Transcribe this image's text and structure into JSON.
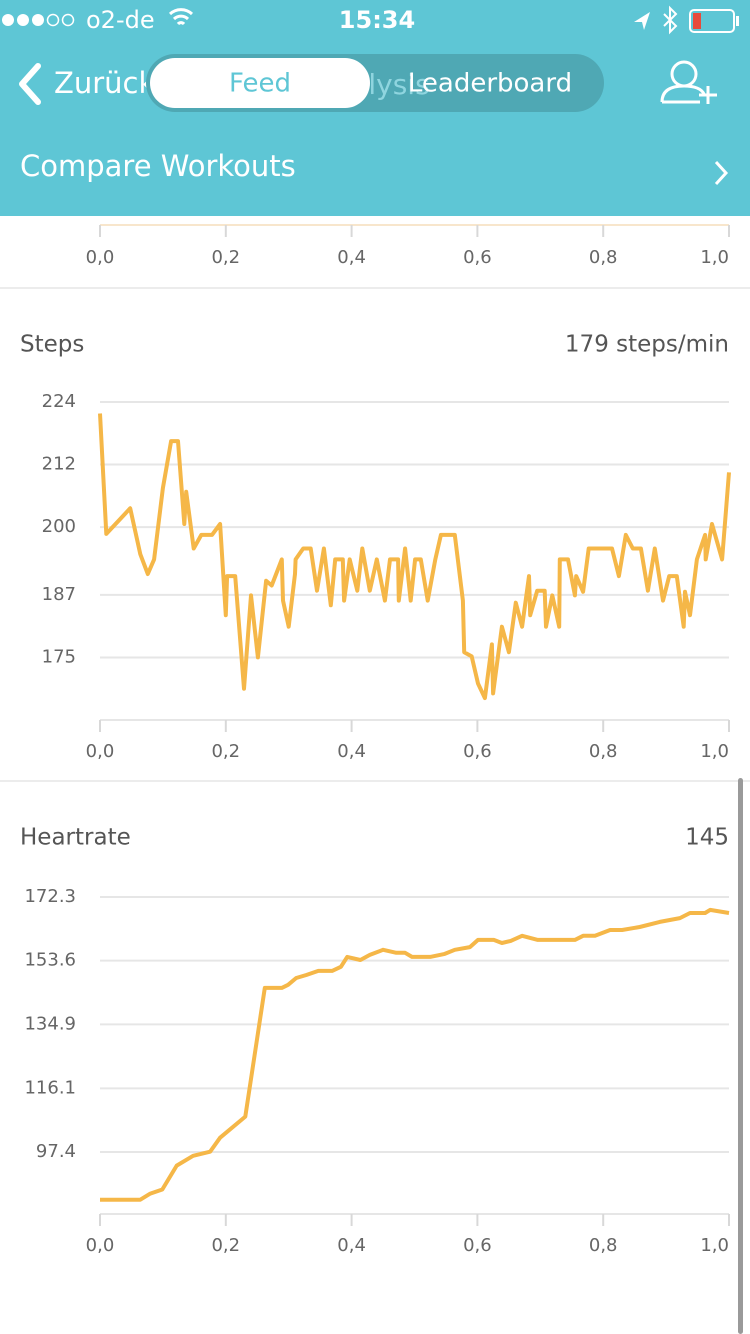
{
  "status_bar": {
    "carrier": "o2-de",
    "time": "15:34"
  },
  "nav": {
    "back": "Zurück",
    "segments": [
      "Feed",
      "Analysis",
      "Leaderboard"
    ]
  },
  "header": {
    "title": "Compare Workouts"
  },
  "chart_data": [
    {
      "type": "line",
      "color": "#f5b748",
      "xlim": [
        0,
        1
      ],
      "xticks": [
        {
          "value": 0,
          "label": "0,0"
        },
        {
          "value": 0.2,
          "label": "0,2"
        },
        {
          "value": 0.4,
          "label": "0,4"
        },
        {
          "value": 0.6,
          "label": "0,6"
        },
        {
          "value": 0.8,
          "label": "0,8"
        },
        {
          "value": 1,
          "label": "1,0"
        }
      ]
    },
    {
      "type": "line",
      "title": "Steps",
      "summary": "179 steps/min",
      "color": "#f5b748",
      "grid": true,
      "xlim": [
        0,
        1
      ],
      "xticks": [
        {
          "value": 0,
          "label": "0,0"
        },
        {
          "value": 0.2,
          "label": "0,2"
        },
        {
          "value": 0.4,
          "label": "0,4"
        },
        {
          "value": 0.6,
          "label": "0,6"
        },
        {
          "value": 0.8,
          "label": "0,8"
        },
        {
          "value": 1,
          "label": "1,0"
        }
      ],
      "ylim": [
        163,
        224
      ],
      "yticks": [
        224,
        212,
        200,
        187,
        175
      ],
      "x": [
        0,
        0.01,
        0.048,
        0.064,
        0.076,
        0.086,
        0.1,
        0.113,
        0.124,
        0.134,
        0.137,
        0.149,
        0.161,
        0.178,
        0.191,
        0.2,
        0.202,
        0.215,
        0.229,
        0.24,
        0.251,
        0.264,
        0.273,
        0.289,
        0.291,
        0.3,
        0.31,
        0.311,
        0.323,
        0.335,
        0.345,
        0.356,
        0.367,
        0.374,
        0.386,
        0.388,
        0.397,
        0.409,
        0.417,
        0.429,
        0.44,
        0.453,
        0.461,
        0.474,
        0.475,
        0.485,
        0.494,
        0.501,
        0.51,
        0.521,
        0.533,
        0.542,
        0.564,
        0.577,
        0.579,
        0.591,
        0.601,
        0.612,
        0.623,
        0.625,
        0.639,
        0.65,
        0.661,
        0.671,
        0.682,
        0.684,
        0.695,
        0.707,
        0.709,
        0.719,
        0.73,
        0.731,
        0.744,
        0.755,
        0.757,
        0.768,
        0.777,
        0.814,
        0.825,
        0.836,
        0.847,
        0.86,
        0.871,
        0.882,
        0.895,
        0.905,
        0.917,
        0.928,
        0.93,
        0.938,
        0.949,
        0.962,
        0.963,
        0.973,
        0.989,
        1
      ],
      "values": [
        221.8,
        198.7,
        203.6,
        194.8,
        191,
        193.8,
        207.5,
        216.5,
        216.5,
        200.6,
        206.8,
        195.9,
        198.5,
        198.5,
        200.6,
        183.1,
        190.6,
        190.6,
        169,
        186.9,
        175,
        189.7,
        188.8,
        193.8,
        185.9,
        180.9,
        191,
        193.8,
        195.9,
        195.9,
        187.8,
        195.9,
        185,
        193.8,
        193.8,
        185.9,
        193.8,
        187.8,
        195.9,
        187.8,
        193.8,
        185.9,
        193.8,
        193.8,
        185.9,
        195.9,
        185.9,
        193.8,
        193.8,
        185.9,
        193.8,
        198.5,
        198.5,
        185.9,
        176,
        175.2,
        170,
        167.2,
        177.5,
        168.1,
        180.9,
        176,
        185.5,
        180.9,
        190.6,
        183.1,
        187.8,
        187.8,
        180.9,
        186.9,
        180.9,
        193.8,
        193.8,
        186.9,
        190.6,
        187.6,
        195.9,
        195.9,
        190.6,
        198.5,
        195.9,
        195.9,
        187.8,
        195.9,
        185.9,
        190.6,
        190.6,
        180.9,
        187.6,
        183.1,
        193.8,
        198.5,
        193.8,
        200.6,
        193.8,
        210.5
      ]
    },
    {
      "type": "line",
      "title": "Heartrate",
      "summary": "145",
      "color": "#f5b748",
      "grid": true,
      "xlim": [
        0,
        1
      ],
      "xticks": [
        {
          "value": 0,
          "label": "0,0"
        },
        {
          "value": 0.2,
          "label": "0,2"
        },
        {
          "value": 0.4,
          "label": "0,4"
        },
        {
          "value": 0.6,
          "label": "0,6"
        },
        {
          "value": 0.8,
          "label": "0,8"
        },
        {
          "value": 1,
          "label": "1,0"
        }
      ],
      "ylim": [
        79.2,
        172.3
      ],
      "yticks": [
        172.3,
        153.6,
        134.9,
        116.1,
        97.4
      ],
      "x": [
        0,
        0.064,
        0.08,
        0.099,
        0.122,
        0.148,
        0.175,
        0.191,
        0.231,
        0.262,
        0.289,
        0.299,
        0.312,
        0.328,
        0.347,
        0.369,
        0.383,
        0.393,
        0.414,
        0.429,
        0.45,
        0.471,
        0.485,
        0.496,
        0.525,
        0.548,
        0.564,
        0.588,
        0.601,
        0.626,
        0.639,
        0.653,
        0.671,
        0.696,
        0.755,
        0.768,
        0.787,
        0.811,
        0.83,
        0.858,
        0.89,
        0.922,
        0.938,
        0.962,
        0.97,
        1
      ],
      "values": [
        83.4,
        83.4,
        85.2,
        86.4,
        93.4,
        96.3,
        97.5,
        101.6,
        107.8,
        145.6,
        145.6,
        146.5,
        148.5,
        149.4,
        150.6,
        150.6,
        151.8,
        154.7,
        153.8,
        155.3,
        156.8,
        155.9,
        155.9,
        154.7,
        154.7,
        155.6,
        156.8,
        157.6,
        159.7,
        159.7,
        158.8,
        159.4,
        160.9,
        159.7,
        159.7,
        160.9,
        160.9,
        162.6,
        162.6,
        163.5,
        165,
        166.1,
        167.6,
        167.6,
        168.5,
        167.6
      ]
    }
  ]
}
